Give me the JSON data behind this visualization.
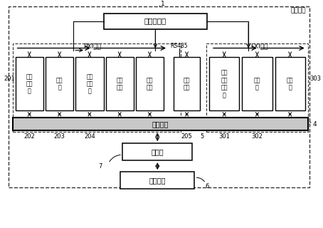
{
  "title": "测试机柜",
  "label_1": "1",
  "label_4": "4",
  "label_5": "5",
  "label_6": "6",
  "label_7": "7",
  "label_201": "201",
  "label_202": "202",
  "label_203": "203",
  "label_204": "204",
  "label_205": "205",
  "label_301": "301",
  "label_302": "302",
  "label_303": "303",
  "main_computer": "主控计算机",
  "pxi_bus": "PXI总线",
  "rs485": "RS485",
  "lxi_bus": "LXI总线",
  "test_interface": "测试接口",
  "adapter": "适配器",
  "calibration": "校液仪表",
  "mod0": "数据\n采集\n卡",
  "mod1": "电阻\n卡",
  "mod2": "开关\n矩阵\n卡",
  "mod3": "万用\n表卡",
  "mod4": "复用\n器卡",
  "mod5": "电源\n模块",
  "mod6": "任意\n波形\n发生\n器",
  "mod7": "示波\n器",
  "mod8": "频率\n计",
  "bg_color": "#ffffff",
  "dashed_color": "#555555"
}
